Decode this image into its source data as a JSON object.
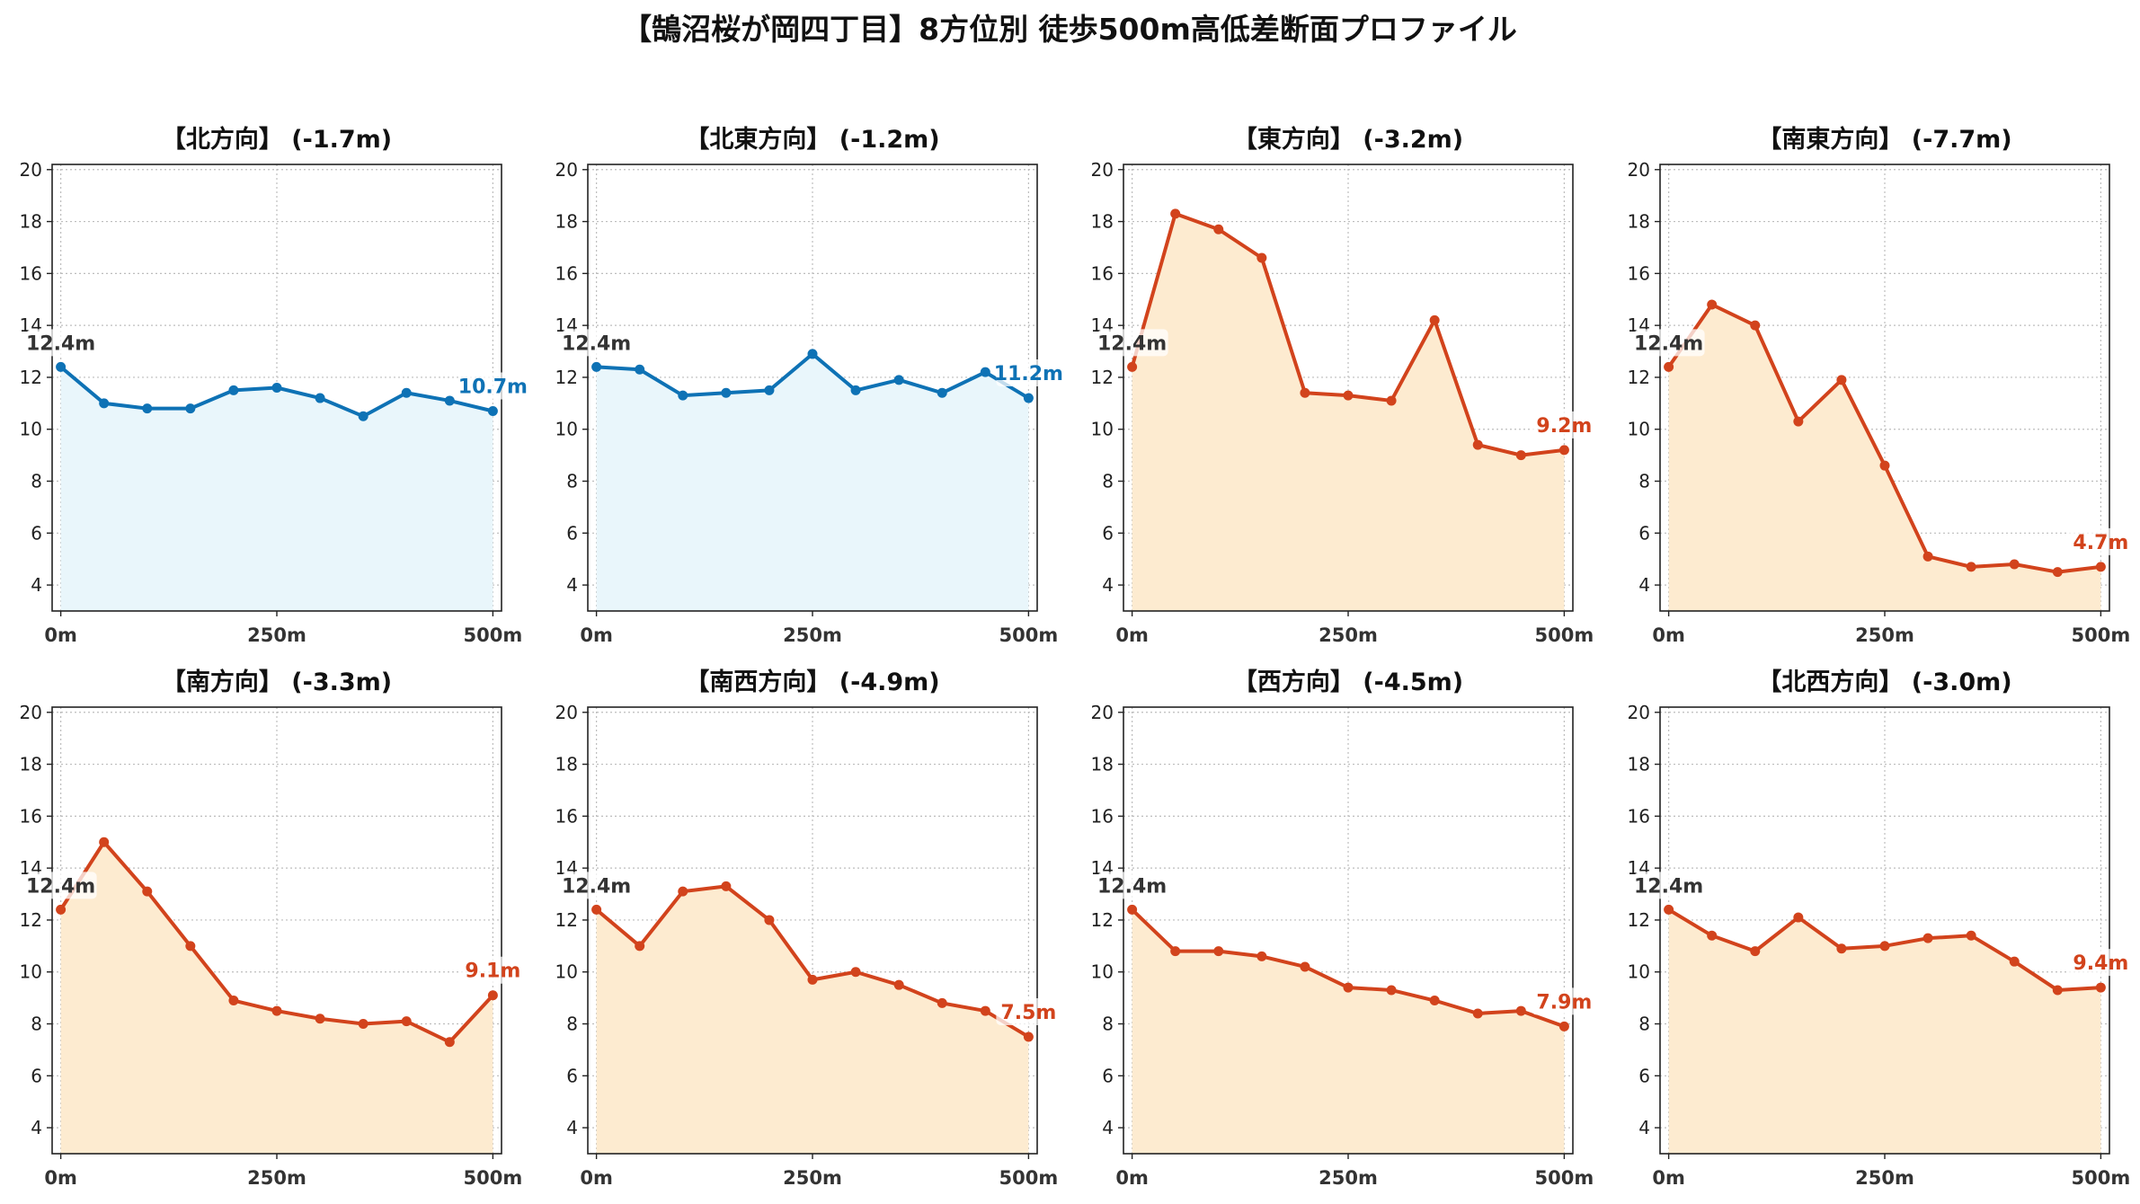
{
  "figure": {
    "title": "【鵠沼桜が岡四丁目】8方位別 徒歩500m高低差断面プロファイル"
  },
  "colors": {
    "up_line": "#0e72b5",
    "up_fill": "#e9f6fb",
    "down_line": "#d2431c",
    "down_fill": "#fdebd0",
    "start_label": "#333333",
    "grid": "#bdbdbd"
  },
  "chart_data": [
    {
      "type": "area",
      "title": "【北方向】 (-1.7m)",
      "trend": "up",
      "x": [
        0,
        50,
        100,
        150,
        200,
        250,
        300,
        350,
        400,
        450,
        500
      ],
      "values": [
        12.4,
        11.0,
        10.8,
        10.8,
        11.5,
        11.6,
        11.2,
        10.5,
        11.4,
        11.1,
        10.7
      ],
      "start_label": "12.4m",
      "end_label": "10.7m",
      "xticks": [
        0,
        250,
        500
      ],
      "xtick_labels": [
        "0m",
        "250m",
        "500m"
      ],
      "yticks": [
        4,
        6,
        8,
        10,
        12,
        14,
        16,
        18,
        20
      ],
      "ylim": [
        3,
        20.2
      ],
      "xlim": [
        -10,
        510
      ],
      "grid": true
    },
    {
      "type": "area",
      "title": "【北東方向】 (-1.2m)",
      "trend": "up",
      "x": [
        0,
        50,
        100,
        150,
        200,
        250,
        300,
        350,
        400,
        450,
        500
      ],
      "values": [
        12.4,
        12.3,
        11.3,
        11.4,
        11.5,
        12.9,
        11.5,
        11.9,
        11.4,
        12.2,
        11.2
      ],
      "start_label": "12.4m",
      "end_label": "11.2m",
      "xticks": [
        0,
        250,
        500
      ],
      "xtick_labels": [
        "0m",
        "250m",
        "500m"
      ],
      "yticks": [
        4,
        6,
        8,
        10,
        12,
        14,
        16,
        18,
        20
      ],
      "ylim": [
        3,
        20.2
      ],
      "xlim": [
        -10,
        510
      ],
      "grid": true
    },
    {
      "type": "area",
      "title": "【東方向】 (-3.2m)",
      "trend": "down",
      "x": [
        0,
        50,
        100,
        150,
        200,
        250,
        300,
        350,
        400,
        450,
        500
      ],
      "values": [
        12.4,
        18.3,
        17.7,
        16.6,
        11.4,
        11.3,
        11.1,
        14.2,
        9.4,
        9.0,
        9.2
      ],
      "start_label": "12.4m",
      "end_label": "9.2m",
      "xticks": [
        0,
        250,
        500
      ],
      "xtick_labels": [
        "0m",
        "250m",
        "500m"
      ],
      "yticks": [
        4,
        6,
        8,
        10,
        12,
        14,
        16,
        18,
        20
      ],
      "ylim": [
        3,
        20.2
      ],
      "xlim": [
        -10,
        510
      ],
      "grid": true
    },
    {
      "type": "area",
      "title": "【南東方向】 (-7.7m)",
      "trend": "down",
      "x": [
        0,
        50,
        100,
        150,
        200,
        250,
        300,
        350,
        400,
        450,
        500
      ],
      "values": [
        12.4,
        14.8,
        14.0,
        10.3,
        11.9,
        8.6,
        5.1,
        4.7,
        4.8,
        4.5,
        4.7
      ],
      "start_label": "12.4m",
      "end_label": "4.7m",
      "xticks": [
        0,
        250,
        500
      ],
      "xtick_labels": [
        "0m",
        "250m",
        "500m"
      ],
      "yticks": [
        4,
        6,
        8,
        10,
        12,
        14,
        16,
        18,
        20
      ],
      "ylim": [
        3,
        20.2
      ],
      "xlim": [
        -10,
        510
      ],
      "grid": true
    },
    {
      "type": "area",
      "title": "【南方向】 (-3.3m)",
      "trend": "down",
      "x": [
        0,
        50,
        100,
        150,
        200,
        250,
        300,
        350,
        400,
        450,
        500
      ],
      "values": [
        12.4,
        15.0,
        13.1,
        11.0,
        8.9,
        8.5,
        8.2,
        8.0,
        8.1,
        7.3,
        9.1
      ],
      "start_label": "12.4m",
      "end_label": "9.1m",
      "xticks": [
        0,
        250,
        500
      ],
      "xtick_labels": [
        "0m",
        "250m",
        "500m"
      ],
      "yticks": [
        4,
        6,
        8,
        10,
        12,
        14,
        16,
        18,
        20
      ],
      "ylim": [
        3,
        20.2
      ],
      "xlim": [
        -10,
        510
      ],
      "grid": true
    },
    {
      "type": "area",
      "title": "【南西方向】 (-4.9m)",
      "trend": "down",
      "x": [
        0,
        50,
        100,
        150,
        200,
        250,
        300,
        350,
        400,
        450,
        500
      ],
      "values": [
        12.4,
        11.0,
        13.1,
        13.3,
        12.0,
        9.7,
        10.0,
        9.5,
        8.8,
        8.5,
        7.5
      ],
      "start_label": "12.4m",
      "end_label": "7.5m",
      "xticks": [
        0,
        250,
        500
      ],
      "xtick_labels": [
        "0m",
        "250m",
        "500m"
      ],
      "yticks": [
        4,
        6,
        8,
        10,
        12,
        14,
        16,
        18,
        20
      ],
      "ylim": [
        3,
        20.2
      ],
      "xlim": [
        -10,
        510
      ],
      "grid": true
    },
    {
      "type": "area",
      "title": "【西方向】 (-4.5m)",
      "trend": "down",
      "x": [
        0,
        50,
        100,
        150,
        200,
        250,
        300,
        350,
        400,
        450,
        500
      ],
      "values": [
        12.4,
        10.8,
        10.8,
        10.6,
        10.2,
        9.4,
        9.3,
        8.9,
        8.4,
        8.5,
        7.9
      ],
      "start_label": "12.4m",
      "end_label": "7.9m",
      "xticks": [
        0,
        250,
        500
      ],
      "xtick_labels": [
        "0m",
        "250m",
        "500m"
      ],
      "yticks": [
        4,
        6,
        8,
        10,
        12,
        14,
        16,
        18,
        20
      ],
      "ylim": [
        3,
        20.2
      ],
      "xlim": [
        -10,
        510
      ],
      "grid": true
    },
    {
      "type": "area",
      "title": "【北西方向】 (-3.0m)",
      "trend": "down",
      "x": [
        0,
        50,
        100,
        150,
        200,
        250,
        300,
        350,
        400,
        450,
        500
      ],
      "values": [
        12.4,
        11.4,
        10.8,
        12.1,
        10.9,
        11.0,
        11.3,
        11.4,
        10.4,
        9.3,
        9.4
      ],
      "start_label": "12.4m",
      "end_label": "9.4m",
      "xticks": [
        0,
        250,
        500
      ],
      "xtick_labels": [
        "0m",
        "250m",
        "500m"
      ],
      "yticks": [
        4,
        6,
        8,
        10,
        12,
        14,
        16,
        18,
        20
      ],
      "ylim": [
        3,
        20.2
      ],
      "xlim": [
        -10,
        510
      ],
      "grid": true
    }
  ]
}
